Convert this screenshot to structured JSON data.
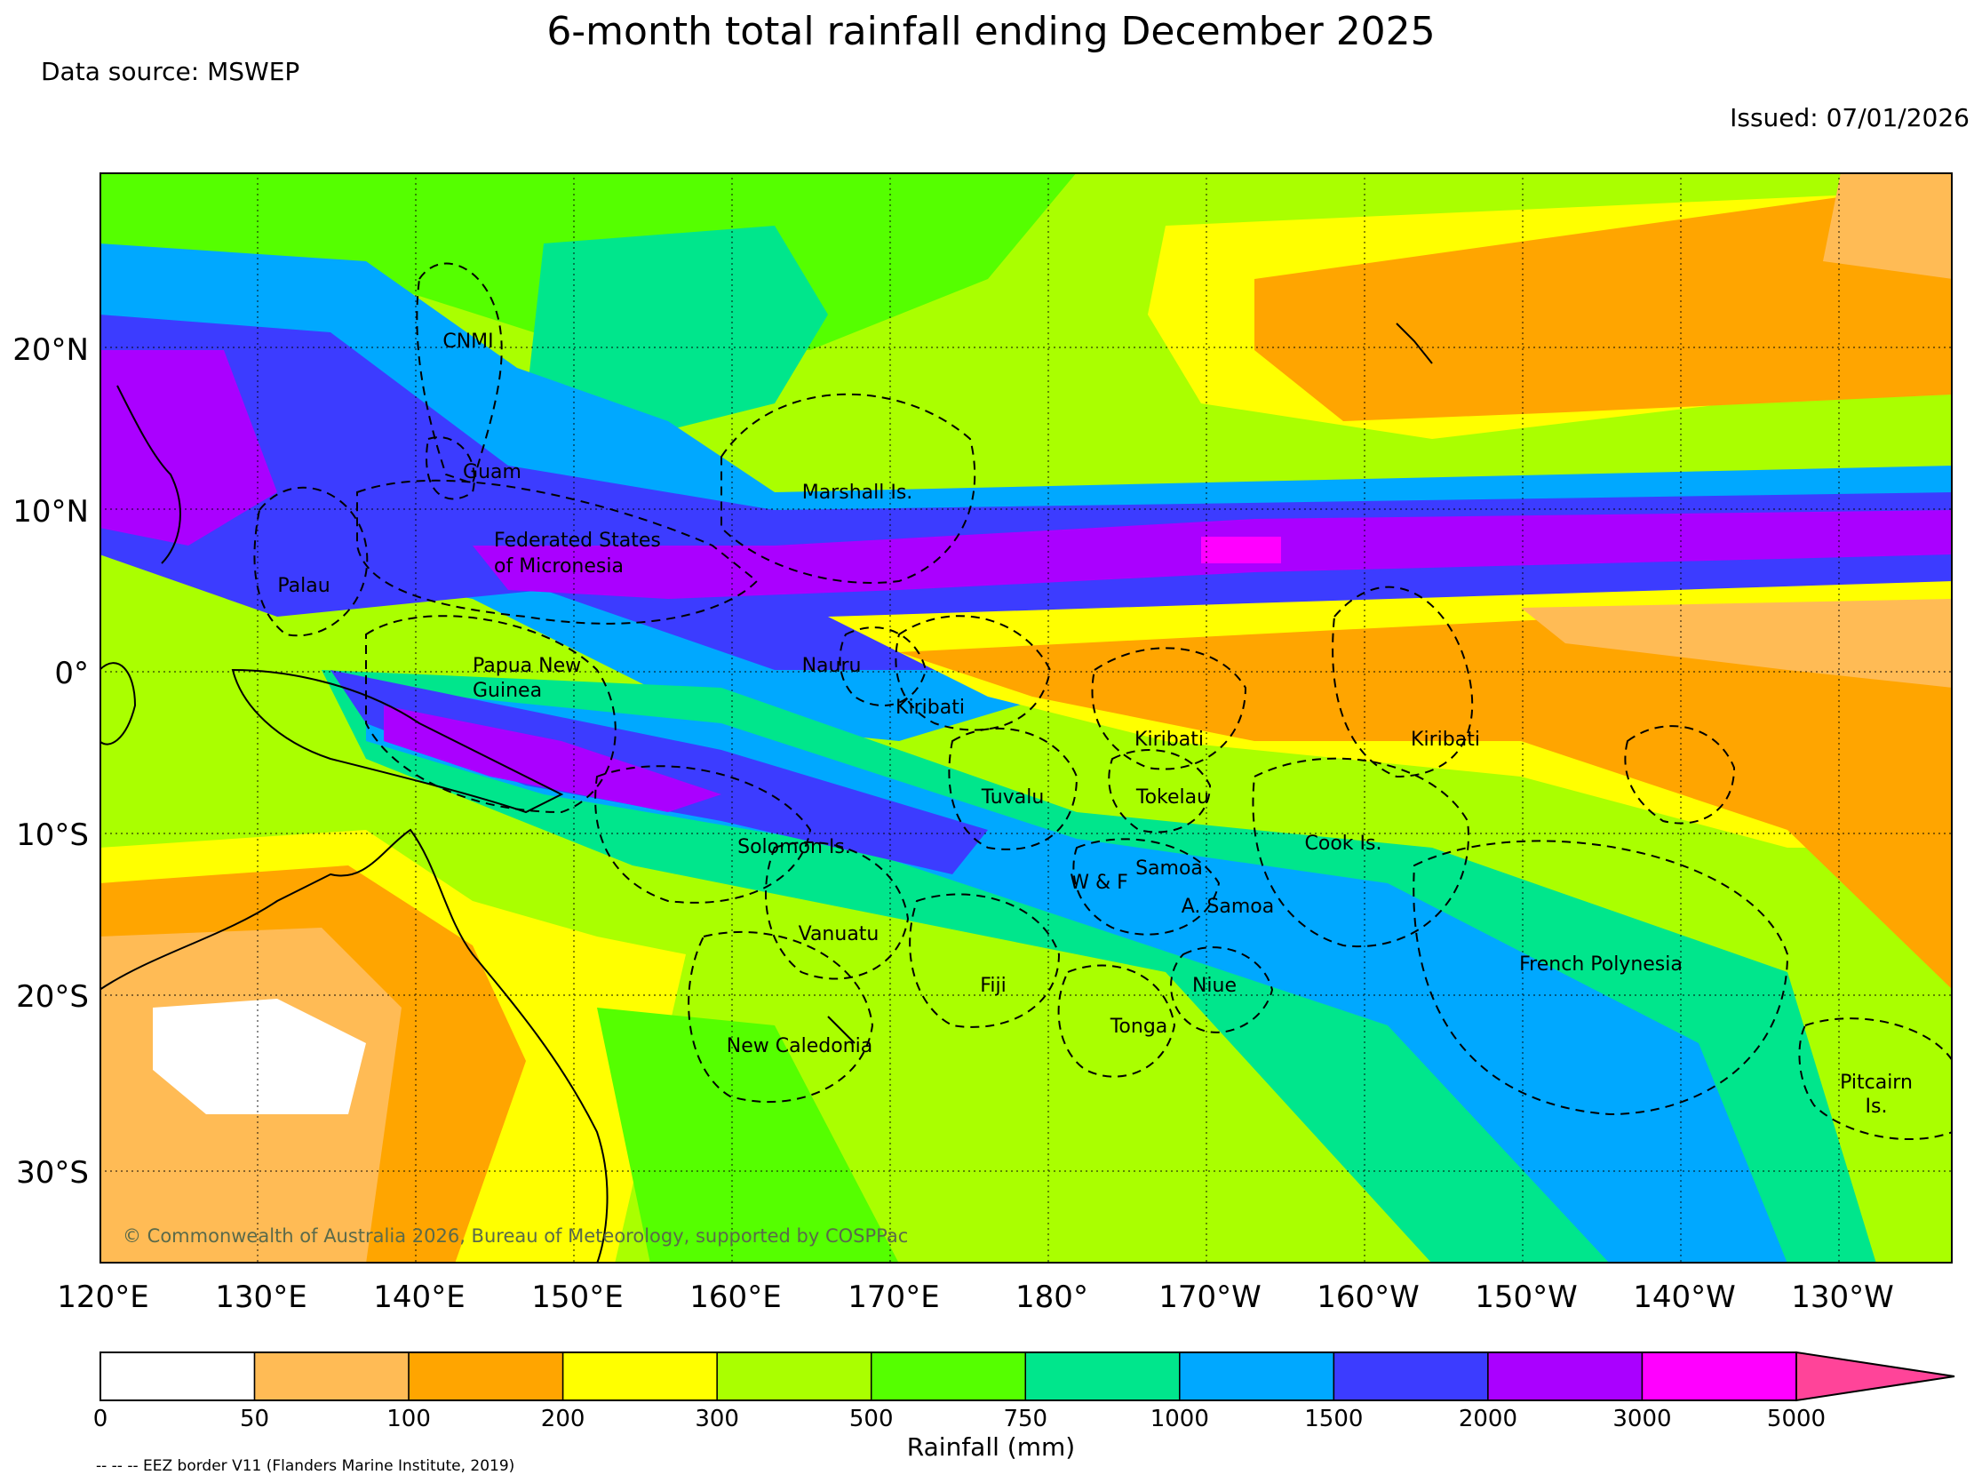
{
  "title": "6-month total rainfall ending December 2025",
  "data_source": "Data source: MSWEP",
  "issued": "Issued: 07/01/2026",
  "latitude_labels": [
    "20°N",
    "10°N",
    "0°",
    "10°S",
    "20°S",
    "30°S"
  ],
  "longitude_labels": [
    "120°E",
    "130°E",
    "140°E",
    "150°E",
    "160°E",
    "170°E",
    "180°",
    "170°W",
    "160°W",
    "150°W",
    "140°W",
    "130°W"
  ],
  "regions": [
    "CNMI",
    "Guam",
    "Marshall Is.",
    "Federated States",
    "of Micronesia",
    "Palau",
    "Papua New",
    "Guinea",
    "Nauru",
    "Kiribati",
    "Kiribati",
    "Kiribati",
    "Tuvalu",
    "Tokelau",
    "Cook Is.",
    "Solomon Is.",
    "Samoa",
    "W & F",
    "A. Samoa",
    "Vanuatu",
    "French Polynesia",
    "Fiji",
    "Niue",
    "Tonga",
    "New Caledonia",
    "Pitcairn",
    "Is."
  ],
  "copyright": "© Commonwealth of Australia 2026, Bureau of Meteorology, supported by COSPPac",
  "colorbar": {
    "label": "Rainfall (mm)",
    "ticks": [
      "0",
      "50",
      "100",
      "200",
      "300",
      "500",
      "750",
      "1000",
      "1500",
      "2000",
      "3000",
      "5000"
    ],
    "colors": [
      "#ffffff",
      "#ffbb55",
      "#ffa500",
      "#ffff00",
      "#aaff00",
      "#55ff00",
      "#00e68c",
      "#00a8ff",
      "#3c3cff",
      "#aa00ff",
      "#ff00ff"
    ],
    "extend_color": "#ff4499"
  },
  "eez_note": "-- -- -- EEZ border V11 (Flanders Marine Institute, 2019)"
}
